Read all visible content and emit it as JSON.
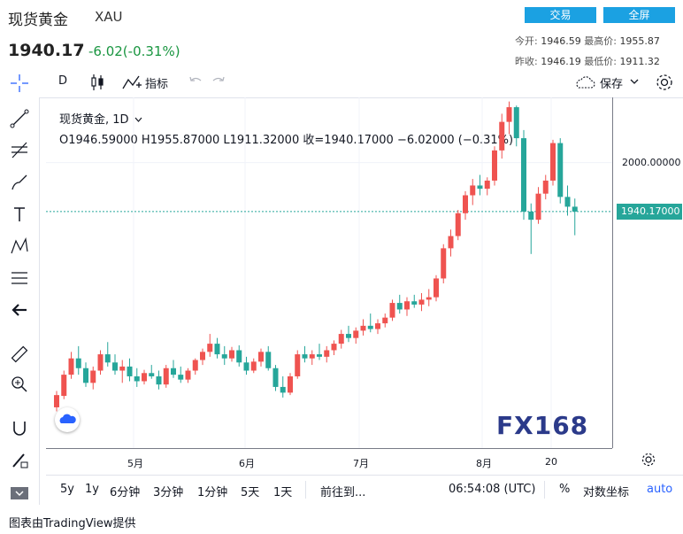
{
  "header": {
    "title": "现货黄金",
    "symbol": "XAU",
    "price": "1940.17",
    "change": "-6.02(-0.31%)",
    "change_color": "#1a9641",
    "trade_button": "交易",
    "fullscreen_button": "全屏",
    "button_color": "#1ba1e2",
    "stats": {
      "open_label": "今开:",
      "open": "1946.59",
      "high_label": "最高价:",
      "high": "1955.87",
      "prev_close_label": "昨收:",
      "prev_close": "1946.19",
      "low_label": "最低价:",
      "low": "1911.32"
    }
  },
  "toolbar": {
    "interval": "D",
    "indicators": "指标",
    "save": "保存"
  },
  "legend": {
    "symbol": "现货黄金, 1D",
    "ohlc": "O1946.59000  H1955.87000  L1911.32000  收=1940.17000  −6.02000 (−0.31%)"
  },
  "price_axis": {
    "tick": "2000.00000",
    "current_tag": "1940.17000",
    "tag_color": "#26a69a"
  },
  "time_axis": [
    "5月",
    "6月",
    "7月",
    "8月",
    "20"
  ],
  "bottom_bar": {
    "ranges": [
      "5y",
      "1y",
      "6分钟",
      "3分钟",
      "1分钟",
      "5天",
      "1天"
    ],
    "goto": "前往到...",
    "time": "06:54:08 (UTC)",
    "percent": "%",
    "log": "对数坐标",
    "auto": "auto"
  },
  "watermark": "FX168",
  "footer": "图表由TradingView提供",
  "chart_data": {
    "type": "candlestick",
    "up_color": "#ef5350",
    "down_color": "#26a69a",
    "ylim": [
      1650,
      2080
    ],
    "candles": [
      [
        1700,
        1720,
        1695,
        1715
      ],
      [
        1714,
        1745,
        1710,
        1740
      ],
      [
        1740,
        1768,
        1735,
        1760
      ],
      [
        1760,
        1775,
        1740,
        1748
      ],
      [
        1748,
        1755,
        1725,
        1730
      ],
      [
        1730,
        1750,
        1722,
        1745
      ],
      [
        1745,
        1770,
        1740,
        1765
      ],
      [
        1765,
        1780,
        1750,
        1755
      ],
      [
        1755,
        1765,
        1740,
        1745
      ],
      [
        1745,
        1758,
        1730,
        1750
      ],
      [
        1750,
        1760,
        1732,
        1738
      ],
      [
        1738,
        1748,
        1725,
        1732
      ],
      [
        1732,
        1746,
        1728,
        1742
      ],
      [
        1742,
        1752,
        1735,
        1738
      ],
      [
        1738,
        1745,
        1722,
        1728
      ],
      [
        1728,
        1752,
        1724,
        1748
      ],
      [
        1748,
        1758,
        1736,
        1740
      ],
      [
        1740,
        1750,
        1730,
        1734
      ],
      [
        1734,
        1748,
        1730,
        1745
      ],
      [
        1745,
        1760,
        1740,
        1758
      ],
      [
        1758,
        1772,
        1752,
        1768
      ],
      [
        1768,
        1790,
        1762,
        1778
      ],
      [
        1778,
        1785,
        1760,
        1765
      ],
      [
        1765,
        1775,
        1752,
        1760
      ],
      [
        1760,
        1774,
        1756,
        1770
      ],
      [
        1770,
        1776,
        1750,
        1755
      ],
      [
        1755,
        1762,
        1740,
        1745
      ],
      [
        1745,
        1760,
        1742,
        1756
      ],
      [
        1756,
        1772,
        1750,
        1768
      ],
      [
        1768,
        1775,
        1745,
        1748
      ],
      [
        1748,
        1752,
        1720,
        1725
      ],
      [
        1725,
        1738,
        1712,
        1718
      ],
      [
        1718,
        1742,
        1715,
        1738
      ],
      [
        1738,
        1770,
        1735,
        1765
      ],
      [
        1765,
        1775,
        1755,
        1760
      ],
      [
        1760,
        1770,
        1752,
        1765
      ],
      [
        1765,
        1778,
        1758,
        1762
      ],
      [
        1762,
        1775,
        1755,
        1770
      ],
      [
        1770,
        1782,
        1764,
        1778
      ],
      [
        1778,
        1795,
        1772,
        1790
      ],
      [
        1790,
        1800,
        1780,
        1785
      ],
      [
        1785,
        1798,
        1778,
        1794
      ],
      [
        1794,
        1808,
        1788,
        1800
      ],
      [
        1800,
        1815,
        1792,
        1796
      ],
      [
        1796,
        1808,
        1790,
        1803
      ],
      [
        1803,
        1815,
        1798,
        1810
      ],
      [
        1810,
        1832,
        1806,
        1828
      ],
      [
        1828,
        1838,
        1815,
        1820
      ],
      [
        1820,
        1835,
        1812,
        1830
      ],
      [
        1830,
        1838,
        1822,
        1826
      ],
      [
        1826,
        1840,
        1818,
        1832
      ],
      [
        1832,
        1845,
        1824,
        1835
      ],
      [
        1835,
        1862,
        1830,
        1858
      ],
      [
        1858,
        1900,
        1852,
        1895
      ],
      [
        1895,
        1918,
        1885,
        1910
      ],
      [
        1910,
        1942,
        1905,
        1938
      ],
      [
        1938,
        1965,
        1930,
        1960
      ],
      [
        1960,
        1980,
        1948,
        1972
      ],
      [
        1972,
        1985,
        1960,
        1968
      ],
      [
        1968,
        1982,
        1960,
        1978
      ],
      [
        1978,
        2020,
        1972,
        2015
      ],
      [
        2015,
        2060,
        2005,
        2050
      ],
      [
        2050,
        2075,
        2035,
        2068
      ],
      [
        2068,
        2070,
        2020,
        2030
      ],
      [
        2030,
        2040,
        1930,
        1940
      ],
      [
        1940,
        1950,
        1888,
        1930
      ],
      [
        1930,
        1970,
        1925,
        1962
      ],
      [
        1962,
        1985,
        1955,
        1978
      ],
      [
        1978,
        2028,
        1972,
        2024
      ],
      [
        2024,
        2030,
        1950,
        1958
      ],
      [
        1958,
        1972,
        1935,
        1946
      ],
      [
        1946,
        1956,
        1911,
        1940
      ]
    ]
  }
}
